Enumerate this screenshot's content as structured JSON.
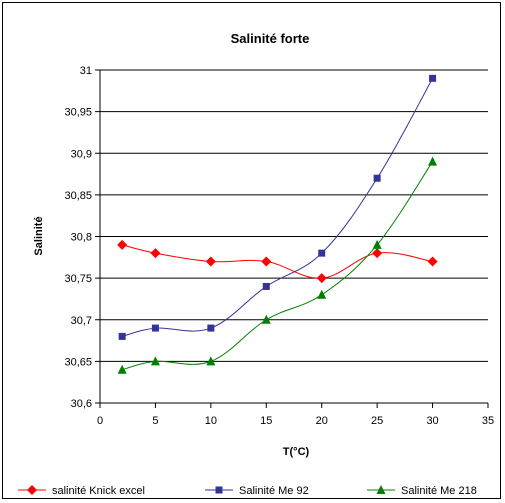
{
  "chart_data": {
    "type": "line",
    "title": "Salinité forte",
    "xlabel": "T(°C)",
    "ylabel": "Salinité",
    "xlim": [
      0,
      35
    ],
    "ylim": [
      30.6,
      31
    ],
    "x_ticks": [
      0,
      5,
      10,
      15,
      20,
      25,
      30,
      35
    ],
    "x_tick_labels": [
      "0",
      "5",
      "10",
      "15",
      "20",
      "25",
      "30",
      "35"
    ],
    "y_ticks": [
      30.6,
      30.65,
      30.7,
      30.75,
      30.8,
      30.85,
      30.9,
      30.95,
      31
    ],
    "y_tick_labels": [
      "30,6",
      "30,65",
      "30,7",
      "30,75",
      "30,8",
      "30,85",
      "30,9",
      "30,95",
      "31"
    ],
    "grid": "horizontal",
    "legend_position": "bottom",
    "series": [
      {
        "name": "salinité Knick excel",
        "color": "#ff0000",
        "marker": "diamond",
        "x": [
          2,
          5,
          10,
          15,
          20,
          25,
          30
        ],
        "y": [
          30.79,
          30.78,
          30.77,
          30.77,
          30.75,
          30.78,
          30.77
        ]
      },
      {
        "name": "Salinité Me 92",
        "color": "#333399",
        "marker": "square",
        "x": [
          2,
          5,
          10,
          15,
          20,
          25,
          30
        ],
        "y": [
          30.68,
          30.69,
          30.69,
          30.74,
          30.78,
          30.87,
          30.99
        ]
      },
      {
        "name": "Salinité Me 218",
        "color": "#008000",
        "marker": "triangle",
        "x": [
          2,
          5,
          10,
          15,
          20,
          25,
          30
        ],
        "y": [
          30.64,
          30.65,
          30.65,
          30.7,
          30.73,
          30.79,
          30.89
        ]
      }
    ]
  }
}
